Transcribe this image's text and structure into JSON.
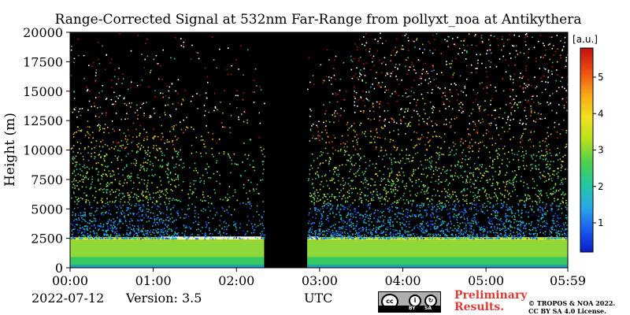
{
  "chart_data": {
    "type": "heatmap",
    "title": "Range-Corrected Signal at 532nm Far-Range from pollyxt_noa at Antikythera",
    "xlabel": "UTC",
    "ylabel": "Height (m)",
    "x_ticks": [
      "00:00",
      "01:00",
      "02:00",
      "03:00",
      "04:00",
      "05:00",
      "05:59"
    ],
    "y_ticks": [
      0,
      2500,
      5000,
      7500,
      10000,
      12500,
      15000,
      17500,
      20000
    ],
    "ylim": [
      0,
      20000
    ],
    "colorbar": {
      "label": "[a.u.]",
      "range": [
        0.2,
        5.8
      ],
      "ticks": [
        1,
        2,
        3,
        4,
        5
      ],
      "colormap": [
        "#0a1fc8",
        "#1a5cf0",
        "#2aa8e8",
        "#22c8a0",
        "#4cd04a",
        "#b8e020",
        "#f0e020",
        "#f8a818",
        "#f05010",
        "#c01010"
      ]
    },
    "data_gap": [
      "02:20",
      "02:51"
    ],
    "boundary_layer_top_m": 2500,
    "background": "#000000"
  },
  "footer": {
    "date": "2022-07-12",
    "version": "Version: 3.5",
    "utc": "UTC",
    "preliminary_line1": "Preliminary",
    "preliminary_line2": "Results.",
    "copyright_line1": "© TROPOS & NOA 2022.",
    "copyright_line2": "CC BY SA 4.0 License.",
    "cc_by": "BY",
    "cc_sa": "SA"
  }
}
